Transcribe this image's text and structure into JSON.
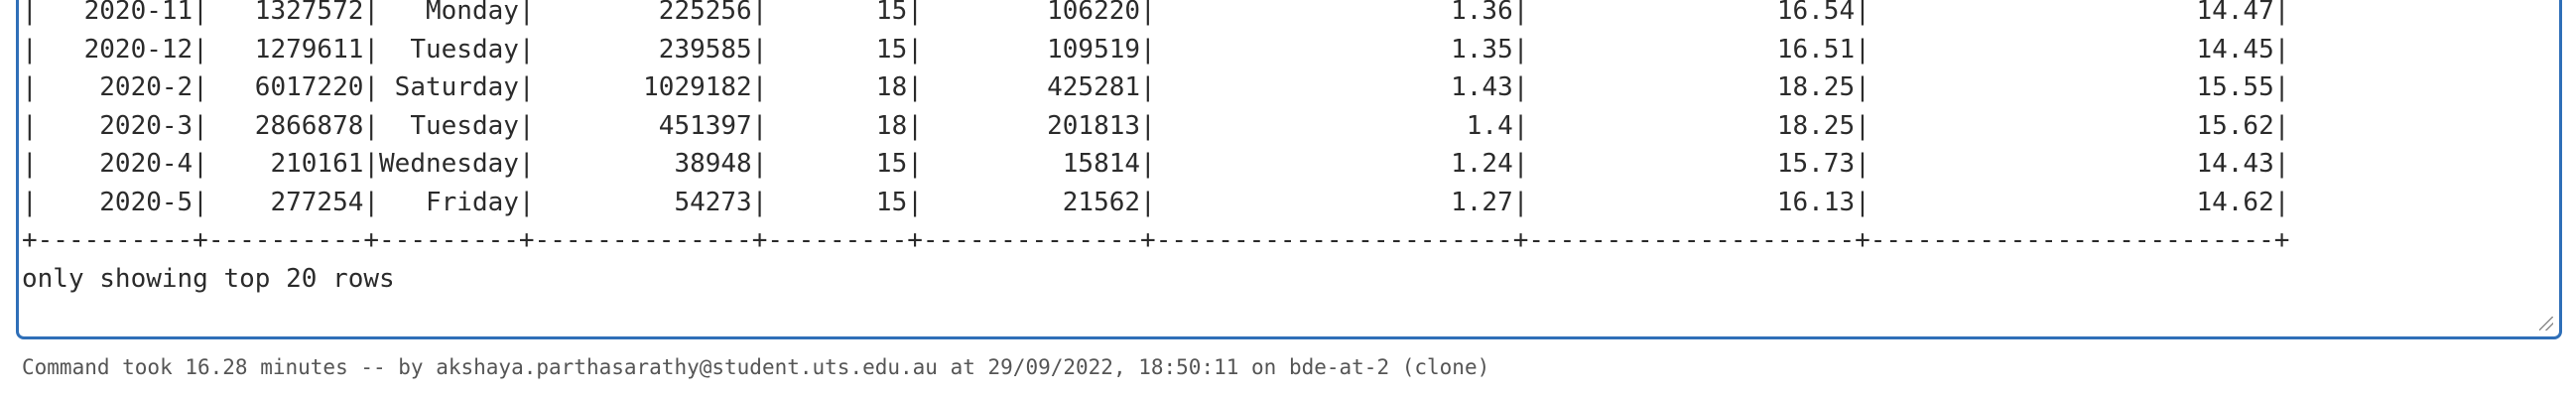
{
  "output": {
    "lines": [
      "|   2020-11|   1327572|   Monday|        225256|       15|        106220|                   1.36|                16.54|                     14.47|",
      "|   2020-12|   1279611|  Tuesday|        239585|       15|        109519|                   1.35|                16.51|                     14.45|",
      "|    2020-2|   6017220| Saturday|       1029182|       18|        425281|                   1.43|                18.25|                     15.55|",
      "|    2020-3|   2866878|  Tuesday|        451397|       18|        201813|                    1.4|                18.25|                     15.62|",
      "|    2020-4|    210161|Wednesday|         38948|       15|         15814|                   1.24|                15.73|                     14.43|",
      "|    2020-5|    277254|   Friday|         54273|       15|         21562|                   1.27|                16.13|                     14.62|",
      "+----------+----------+---------+--------------+---------+--------------+-----------------------+---------------------+--------------------------+",
      "only showing top 20 rows"
    ]
  },
  "footer": {
    "text": "Command took 16.28 minutes -- by akshaya.parthasarathy@student.uts.edu.au at 29/09/2022, 18:50:11 on bde-at-2 (clone)"
  }
}
